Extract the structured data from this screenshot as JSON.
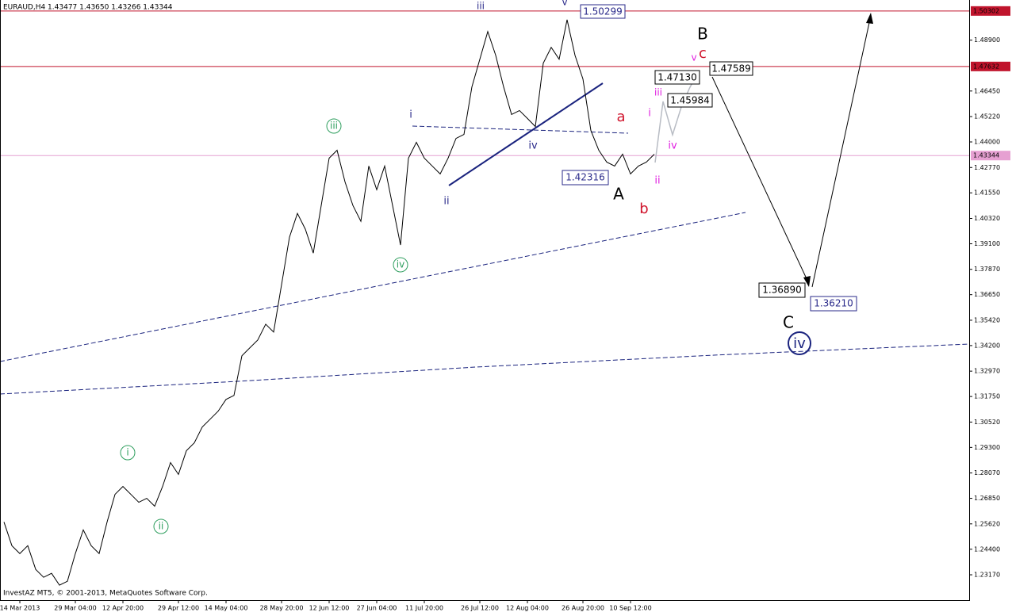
{
  "chart_data": {
    "type": "line",
    "title": "EURAUD,H4 1.43477 1.43650 1.43266 1.43344",
    "watermark": "InvestAZ MT5, © 2001-2013, MetaQuotes Software Corp.",
    "categories": [
      null,
      null,
      "14 Mar 2013",
      null,
      null,
      null,
      null,
      null,
      null,
      "29 Mar 04:00",
      null,
      null,
      null,
      null,
      null,
      "12 Apr 20:00",
      null,
      null,
      null,
      null,
      null,
      null,
      "29 Apr 12:00",
      null,
      null,
      null,
      null,
      null,
      "14 May 04:00",
      null,
      null,
      null,
      null,
      null,
      null,
      "28 May 20:00",
      null,
      null,
      null,
      null,
      null,
      "12 Jun 12:00",
      null,
      null,
      null,
      null,
      null,
      "27 Jun 04:00",
      null,
      null,
      null,
      null,
      null,
      "11 Jul 20:00",
      null,
      null,
      null,
      null,
      null,
      null,
      "26 Jul 12:00",
      null,
      null,
      null,
      null,
      null,
      "12 Aug 04:00",
      null,
      null,
      null,
      null,
      null,
      null,
      "26 Aug 20:00",
      null,
      null,
      null,
      null,
      null,
      "10 Sep 12:00",
      null,
      null,
      null
    ],
    "values": [
      1.2571,
      1.2457,
      1.2419,
      1.2457,
      1.2343,
      1.2305,
      1.2324,
      1.2267,
      1.2286,
      1.2419,
      1.2533,
      1.2457,
      1.2419,
      1.2571,
      1.2704,
      1.2742,
      1.2704,
      1.2666,
      1.2685,
      1.2647,
      1.2742,
      1.2857,
      1.28,
      1.2914,
      1.2952,
      1.3028,
      1.3066,
      1.3104,
      1.3161,
      1.318,
      1.3371,
      1.3409,
      1.3447,
      1.3523,
      1.3485,
      1.3713,
      1.3942,
      1.4056,
      1.398,
      1.3865,
      1.4094,
      1.4322,
      1.436,
      1.4208,
      1.4094,
      1.4018,
      1.4284,
      1.417,
      1.4284,
      1.4094,
      1.3904,
      1.4322,
      1.4398,
      1.4322,
      1.4284,
      1.4246,
      1.4322,
      1.4417,
      1.4436,
      1.4665,
      1.4798,
      1.4931,
      1.4817,
      1.4665,
      1.4532,
      1.4551,
      1.4513,
      1.4474,
      1.4779,
      1.4855,
      1.4798,
      1.4988,
      1.4817,
      1.4703,
      1.4455,
      1.436,
      1.4303,
      1.4284,
      1.4341,
      1.4246,
      1.4284,
      1.4303,
      1.4341
    ],
    "color": "#000000",
    "ylim": [
      1.2195,
      1.5083
    ],
    "yticks": [
      {
        "value": 1.489,
        "label": "1.48900"
      },
      {
        "value": 1.4645,
        "label": "1.46450"
      },
      {
        "value": 1.4522,
        "label": "1.45220"
      },
      {
        "value": 1.44,
        "label": "1.44000"
      },
      {
        "value": 1.4277,
        "label": "1.42770"
      },
      {
        "value": 1.4155,
        "label": "1.41550"
      },
      {
        "value": 1.4032,
        "label": "1.40320"
      },
      {
        "value": 1.391,
        "label": "1.39100"
      },
      {
        "value": 1.3787,
        "label": "1.37870"
      },
      {
        "value": 1.3665,
        "label": "1.36650"
      },
      {
        "value": 1.3542,
        "label": "1.35420"
      },
      {
        "value": 1.342,
        "label": "1.34200"
      },
      {
        "value": 1.3297,
        "label": "1.32970"
      },
      {
        "value": 1.3175,
        "label": "1.31750"
      },
      {
        "value": 1.3052,
        "label": "1.30520"
      },
      {
        "value": 1.293,
        "label": "1.29300"
      },
      {
        "value": 1.2807,
        "label": "1.28070"
      },
      {
        "value": 1.2685,
        "label": "1.26850"
      },
      {
        "value": 1.2562,
        "label": "1.25620"
      },
      {
        "value": 1.244,
        "label": "1.24400"
      },
      {
        "value": 1.2317,
        "label": "1.23170"
      }
    ],
    "hlines": [
      {
        "value": 1.50302,
        "color": "#c0142c"
      },
      {
        "value": 1.47632,
        "color": "#c0142c"
      },
      {
        "value": 1.43344,
        "color": "#e6a0d2"
      }
    ],
    "annotations": [
      "iii",
      "v",
      "1.50299",
      "B",
      "c",
      "v",
      "1.47589",
      "1.47130",
      "iii",
      "1.45984",
      "i",
      "a",
      "i",
      "iii",
      "iv",
      "iv",
      "1.42316",
      "ii",
      "A",
      "ii",
      "b",
      "iv",
      "1.36890",
      "1.36210",
      "C",
      "iv",
      "i",
      "ii"
    ]
  }
}
